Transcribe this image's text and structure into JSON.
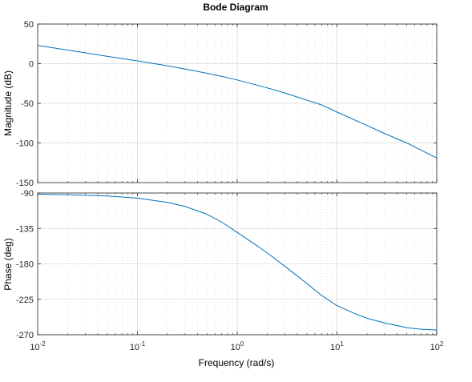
{
  "chart_data": {
    "type": "line",
    "title": "Bode Diagram",
    "xlabel": "Frequency  (rad/s)",
    "x_scale": "log",
    "xlim": [
      0.01,
      100
    ],
    "x_ticks": [
      {
        "value": 0.01,
        "base": "10",
        "exp": "-2"
      },
      {
        "value": 0.1,
        "base": "10",
        "exp": "-1"
      },
      {
        "value": 1,
        "base": "10",
        "exp": "0"
      },
      {
        "value": 10,
        "base": "10",
        "exp": "1"
      },
      {
        "value": 100,
        "base": "10",
        "exp": "2"
      }
    ],
    "grid": true,
    "line_color": "#0072BD",
    "axes_color": "#262626",
    "panels": [
      {
        "name": "magnitude",
        "ylabel": "Magnitude (dB)",
        "ylim": [
          -150,
          50
        ],
        "y_ticks": [
          "50",
          "0",
          "-50",
          "-100",
          "-150"
        ],
        "y_tick_values": [
          50,
          0,
          -50,
          -100,
          -150
        ],
        "series": [
          {
            "x": [
              0.01,
              0.02,
              0.05,
              0.1,
              0.2,
              0.4,
              0.7,
              1,
              2,
              3,
              5,
              7,
              10,
              20,
              30,
              50,
              100
            ],
            "y": [
              23,
              17.2,
              9.2,
              3.5,
              -2.7,
              -9.7,
              -16,
              -20.5,
              -30.5,
              -37,
              -46,
              -52,
              -61,
              -78,
              -88,
              -100,
              -119
            ]
          }
        ]
      },
      {
        "name": "phase",
        "ylabel": "Phase (deg)",
        "ylim": [
          -270,
          -90
        ],
        "y_ticks": [
          "-90",
          "-135",
          "-180",
          "-225",
          "-270"
        ],
        "y_tick_values": [
          -90,
          -135,
          -180,
          -225,
          -270
        ],
        "series": [
          {
            "x": [
              0.01,
              0.02,
              0.05,
              0.1,
              0.2,
              0.3,
              0.5,
              0.7,
              1,
              1.5,
              2,
              3,
              5,
              7,
              10,
              15,
              20,
              30,
              50,
              70,
              100
            ],
            "y": [
              -91.5,
              -92.3,
              -93.8,
              -96.5,
              -102,
              -107,
              -117,
              -127,
              -140,
              -155,
              -166,
              -183,
              -205,
              -220,
              -233,
              -243,
              -249,
              -255,
              -261,
              -263,
              -264
            ]
          }
        ]
      }
    ]
  }
}
